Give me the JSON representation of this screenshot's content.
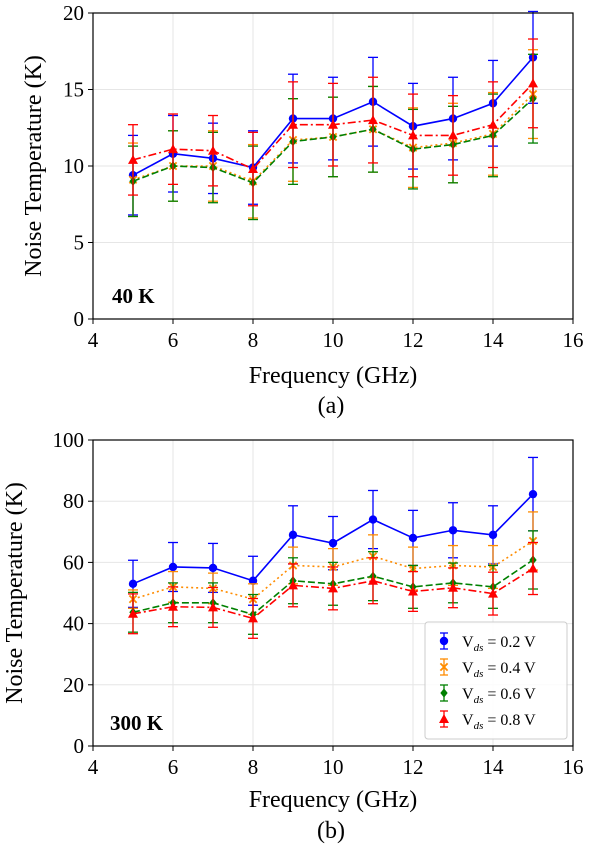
{
  "chart_data": [
    {
      "type": "line",
      "panel_caption": "(a)",
      "annotation": "40 K",
      "xlabel": "Frequency (GHz)",
      "ylabel": "Noise Temperature (K)",
      "xlim": [
        4,
        16
      ],
      "ylim": [
        0,
        20
      ],
      "xticks": [
        4,
        6,
        8,
        10,
        12,
        14,
        16
      ],
      "yticks": [
        0,
        5,
        10,
        15,
        20
      ],
      "grid": true,
      "x": [
        5,
        6,
        7,
        8,
        9,
        10,
        11,
        12,
        13,
        14,
        15
      ],
      "series": [
        {
          "values": [
            9.4,
            10.8,
            10.5,
            9.9,
            13.1,
            13.1,
            14.2,
            12.6,
            13.1,
            14.1,
            17.1
          ],
          "err": [
            2.6,
            2.5,
            2.3,
            2.4,
            2.9,
            2.7,
            2.9,
            2.8,
            2.7,
            2.8,
            3.0
          ],
          "color": "#0000ff",
          "dash": "",
          "marker": "circle"
        },
        {
          "values": [
            9.1,
            10.0,
            10.0,
            9.0,
            11.7,
            11.9,
            12.4,
            11.2,
            11.5,
            12.1,
            14.7
          ],
          "err": [
            2.4,
            2.3,
            2.3,
            2.4,
            2.7,
            2.6,
            2.8,
            2.6,
            2.6,
            2.7,
            2.9
          ],
          "color": "#ff8c00",
          "dash": "2,3",
          "marker": "x"
        },
        {
          "values": [
            9.0,
            10.0,
            9.9,
            8.9,
            11.6,
            11.9,
            12.4,
            11.1,
            11.4,
            12.0,
            14.4
          ],
          "err": [
            2.3,
            2.3,
            2.3,
            2.4,
            2.8,
            2.6,
            2.8,
            2.6,
            2.5,
            2.7,
            2.9
          ],
          "color": "#008000",
          "dash": "7,3",
          "marker": "diamond"
        },
        {
          "values": [
            10.4,
            11.1,
            11.0,
            9.8,
            12.7,
            12.7,
            13.0,
            12.0,
            12.0,
            12.7,
            15.4
          ],
          "err": [
            2.3,
            2.3,
            2.3,
            2.4,
            2.8,
            2.7,
            2.8,
            2.7,
            2.6,
            2.8,
            2.9
          ],
          "color": "#ff0000",
          "dash": "8,3,2,3",
          "marker": "triangle"
        }
      ]
    },
    {
      "type": "line",
      "panel_caption": "(b)",
      "annotation": "300 K",
      "xlabel": "Frequency (GHz)",
      "ylabel": "Noise Temperature (K)",
      "xlim": [
        4,
        16
      ],
      "ylim": [
        0,
        100
      ],
      "xticks": [
        4,
        6,
        8,
        10,
        12,
        14,
        16
      ],
      "yticks": [
        0,
        20,
        40,
        60,
        80,
        100
      ],
      "grid": true,
      "legend_position": "bottom-right",
      "x": [
        5,
        6,
        7,
        8,
        9,
        10,
        11,
        12,
        13,
        14,
        15
      ],
      "series": [
        {
          "name": "V_ds = 0.2 V",
          "legend_main": "V",
          "legend_sub": "ds",
          "legend_rest": " = 0.2 V",
          "values": [
            53,
            58.5,
            58.2,
            54,
            69,
            66.3,
            74,
            68,
            70.5,
            69,
            82.3
          ],
          "err": [
            7.7,
            8,
            8,
            8,
            9.5,
            8.7,
            9.5,
            9,
            9,
            9.5,
            12
          ],
          "color": "#0000ff",
          "dash": "",
          "marker": "circle"
        },
        {
          "name": "V_ds = 0.4 V",
          "legend_main": "V",
          "legend_sub": "ds",
          "legend_rest": " = 0.4 V",
          "values": [
            48,
            52,
            51.5,
            48,
            59,
            58.5,
            62,
            58,
            59,
            58.5,
            67
          ],
          "err": [
            3,
            5,
            5,
            5,
            6,
            6,
            7,
            7,
            6.5,
            7,
            9.5
          ],
          "color": "#ff8c00",
          "dash": "2,3",
          "marker": "x"
        },
        {
          "name": "V_ds = 0.6 V",
          "legend_main": "V",
          "legend_sub": "ds",
          "legend_rest": " = 0.6 V",
          "values": [
            43.7,
            46.8,
            46.8,
            43,
            54,
            53,
            55.5,
            52,
            53.3,
            52,
            60.8
          ],
          "err": [
            6.5,
            6.5,
            6.5,
            6.5,
            7.5,
            7,
            8,
            7,
            6.5,
            7,
            9.5
          ],
          "color": "#008000",
          "dash": "7,3",
          "marker": "diamond"
        },
        {
          "name": "V_ds = 0.8 V",
          "legend_main": "V",
          "legend_sub": "ds",
          "legend_rest": " = 0.8 V",
          "values": [
            43.2,
            45.5,
            45.3,
            41.7,
            52.5,
            51.5,
            54,
            50.5,
            51.7,
            49.8,
            58
          ],
          "err": [
            6.5,
            6.5,
            6.5,
            6.5,
            7,
            7,
            7.5,
            6.5,
            6.5,
            7,
            8.5
          ],
          "color": "#ff0000",
          "dash": "8,3,2,3",
          "marker": "triangle"
        }
      ]
    }
  ]
}
